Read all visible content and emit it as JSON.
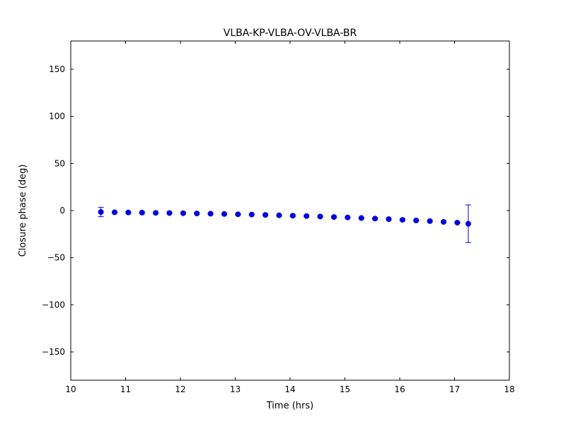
{
  "figure": {
    "title": "VLBA-KP-VLBA-OV-VLBA-BR",
    "xlabel": "Time (hrs)",
    "ylabel": "Closure phase (deg)"
  },
  "chart_data": {
    "type": "scatter",
    "title": "VLBA-KP-VLBA-OV-VLBA-BR",
    "xlabel": "Time (hrs)",
    "ylabel": "Closure phase (deg)",
    "xlim": [
      10,
      18
    ],
    "ylim": [
      -180,
      180
    ],
    "xticks": [
      10,
      11,
      12,
      13,
      14,
      15,
      16,
      17,
      18
    ],
    "yticks": [
      -150,
      -100,
      -50,
      0,
      50,
      100,
      150
    ],
    "grid": false,
    "legend_position": "none",
    "marker": "circle",
    "marker_color": "#0000dd",
    "errorbar_color": "#0000dd",
    "axes_color": "#000000",
    "background_color": "#ffffff",
    "series_name": "closure phase",
    "x": [
      10.55,
      10.8,
      11.05,
      11.3,
      11.55,
      11.8,
      12.05,
      12.3,
      12.55,
      12.8,
      13.05,
      13.3,
      13.55,
      13.8,
      14.05,
      14.3,
      14.55,
      14.8,
      15.05,
      15.3,
      15.55,
      15.8,
      16.05,
      16.3,
      16.55,
      16.8,
      17.05,
      17.25
    ],
    "y": [
      -1.5,
      -1.8,
      -2.0,
      -2.2,
      -2.4,
      -2.6,
      -2.8,
      -3.0,
      -3.3,
      -3.6,
      -3.9,
      -4.2,
      -4.6,
      -5.0,
      -5.4,
      -5.8,
      -6.3,
      -6.8,
      -7.3,
      -7.9,
      -8.5,
      -9.1,
      -9.8,
      -10.5,
      -11.2,
      -12.0,
      -12.8,
      -14.0
    ],
    "yerr": [
      5,
      0.8,
      0.8,
      0.8,
      0.8,
      0.8,
      0.8,
      0.8,
      0.8,
      0.8,
      0.8,
      0.8,
      0.8,
      0.8,
      0.8,
      0.8,
      0.8,
      0.8,
      0.8,
      0.8,
      0.8,
      0.8,
      0.8,
      0.8,
      0.8,
      0.8,
      0.8,
      20
    ]
  }
}
